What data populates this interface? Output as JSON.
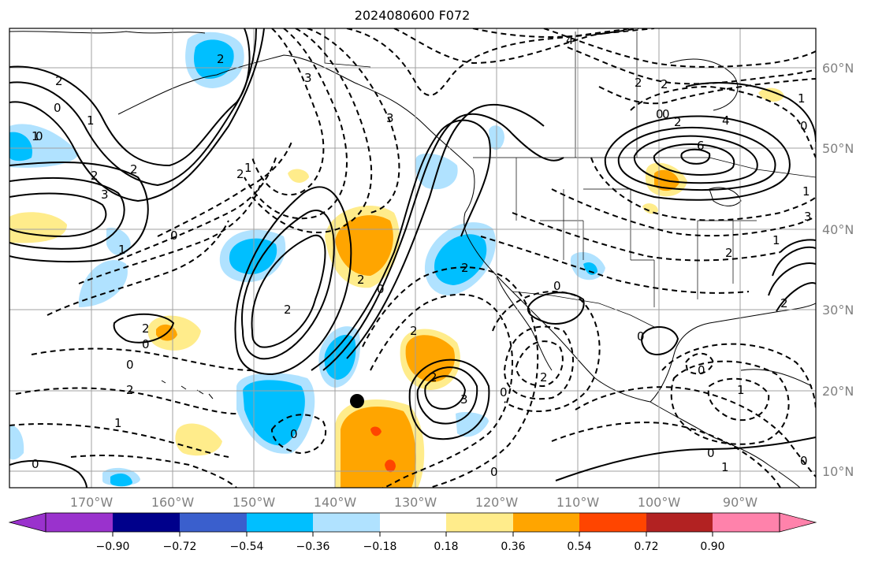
{
  "title": "2024080600 F072",
  "map": {
    "lon_labels": [
      "170°W",
      "160°W",
      "150°W",
      "140°W",
      "130°W",
      "120°W",
      "110°W",
      "100°W",
      "90°W"
    ],
    "lat_labels": [
      "60°N",
      "50°N",
      "40°N",
      "30°N",
      "20°N",
      "10°N"
    ],
    "colors": {
      "purple": "#9a32cd",
      "navy": "#00008b",
      "blue_mid": "#3a5fcd",
      "blue": "#00bfff",
      "light_blue": "#b0e2ff",
      "yellow": "#ffec8b",
      "orange": "#ffa500",
      "red_orange": "#ff4500",
      "dark_red": "#b22222",
      "pink": "#ff82ab"
    },
    "contour_labels": [
      "4",
      "3",
      "2",
      "2",
      "0",
      "1",
      "0",
      "2",
      "2",
      "3",
      "2",
      "0",
      "1",
      "0",
      "2",
      "0",
      "0",
      "3",
      "2",
      "2",
      "0",
      "2",
      "0",
      "2",
      "0",
      "2",
      "2",
      "1",
      "0",
      "3",
      "2",
      "0",
      "1",
      "2",
      "2",
      "0",
      "1",
      "0",
      "2",
      "4",
      "6",
      "0",
      "1",
      "3",
      "2",
      "2",
      "0",
      "0",
      "0",
      "1",
      "0",
      "1",
      "1",
      "1",
      "1"
    ],
    "station_marker": "circle"
  },
  "colorbar": {
    "colors": [
      "#9a32cd",
      "#00008b",
      "#3a5fcd",
      "#00bfff",
      "#b0e2ff",
      "#ffffff",
      "#ffec8b",
      "#ffa500",
      "#ff4500",
      "#b22222",
      "#ff82ab"
    ],
    "tick_labels": [
      "−0.90",
      "−0.72",
      "−0.54",
      "−0.36",
      "−0.18",
      "0.18",
      "0.36",
      "0.54",
      "0.72",
      "0.90"
    ]
  }
}
